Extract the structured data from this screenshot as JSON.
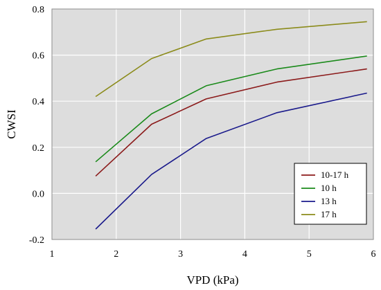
{
  "chart_data": {
    "type": "line",
    "xlabel": "VPD (kPa)",
    "ylabel": "CWSI",
    "xlim": [
      1,
      6
    ],
    "ylim": [
      -0.2,
      0.8
    ],
    "x_ticks": [
      1,
      2,
      3,
      4,
      5,
      6
    ],
    "y_ticks": [
      -0.2,
      0.0,
      0.2,
      0.4,
      0.6,
      0.8
    ],
    "x_tick_labels": [
      "1",
      "2",
      "3",
      "4",
      "5",
      "6"
    ],
    "y_tick_labels": [
      "-0.2",
      "0.0",
      "0.2",
      "0.4",
      "0.6",
      "0.8"
    ],
    "grid": true,
    "legend_position": "bottom-right",
    "plot_background": "#dddddd",
    "series": [
      {
        "name": "10-17 h",
        "color": "#8b1a1a",
        "x": [
          1.68,
          2.55,
          3.4,
          4.5,
          5.9
        ],
        "y": [
          0.075,
          0.3,
          0.41,
          0.483,
          0.54
        ]
      },
      {
        "name": "10 h",
        "color": "#1a8a1a",
        "x": [
          1.68,
          2.55,
          3.4,
          4.5,
          5.9
        ],
        "y": [
          0.137,
          0.345,
          0.467,
          0.54,
          0.596
        ]
      },
      {
        "name": "13 h",
        "color": "#1a1a8b",
        "x": [
          1.68,
          2.55,
          3.4,
          4.5,
          5.9
        ],
        "y": [
          -0.155,
          0.082,
          0.238,
          0.35,
          0.435
        ]
      },
      {
        "name": "17 h",
        "color": "#8b8b1a",
        "x": [
          1.68,
          2.55,
          3.4,
          4.5,
          5.9
        ],
        "y": [
          0.42,
          0.585,
          0.67,
          0.712,
          0.745
        ]
      }
    ]
  }
}
